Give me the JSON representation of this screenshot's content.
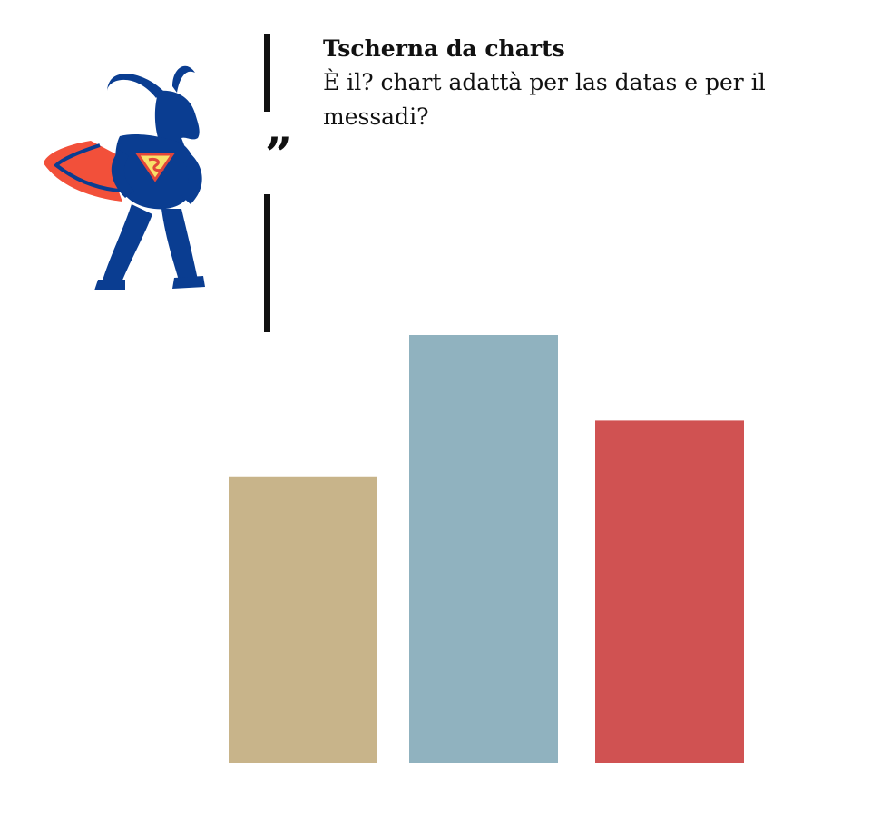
{
  "header": {
    "title": "Tscherna da charts",
    "subtitle": "È il? chart adattà per las datas e per il messadi?",
    "quote_mark": "”"
  },
  "mascot": {
    "icon": "superhero-goat-icon",
    "colors": {
      "body": "#0a3d91",
      "cape": "#f2503a",
      "emblem": "#f7e06a",
      "emblem_outline": "#e2463a"
    }
  },
  "chart_data": {
    "type": "bar",
    "categories": [
      "",
      "",
      ""
    ],
    "values": [
      67,
      100,
      80
    ],
    "colors": [
      "#c8b48a",
      "#90b2bf",
      "#d05252"
    ],
    "title": "",
    "xlabel": "",
    "ylabel": "",
    "ylim": [
      0,
      100
    ],
    "grid": false,
    "legend": "none"
  }
}
